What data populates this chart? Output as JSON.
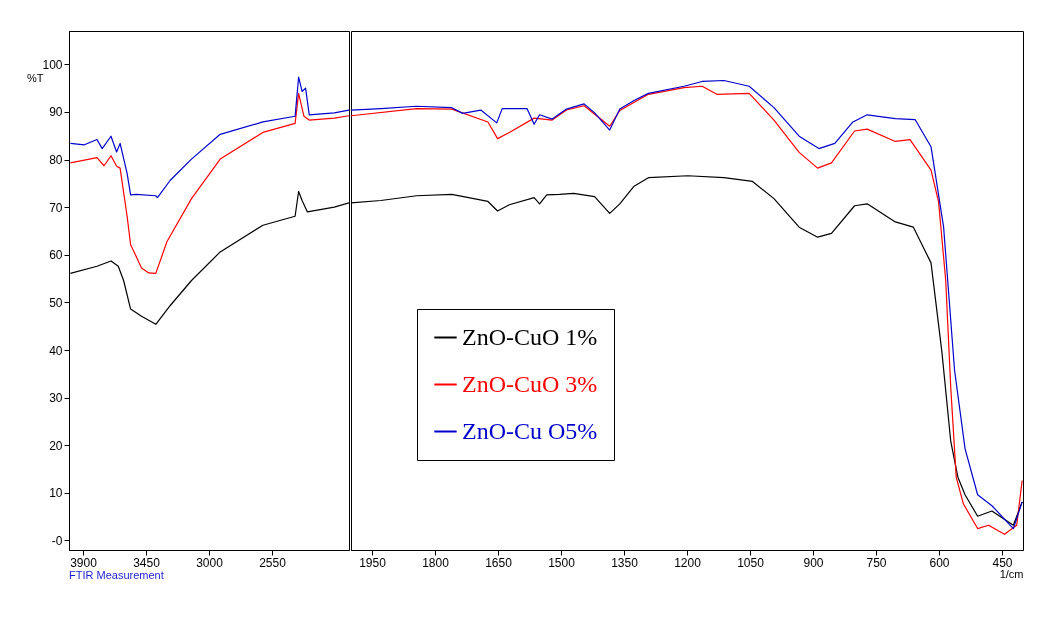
{
  "chart_data": [
    {
      "type": "line",
      "ylabel": "%T",
      "annotations": [
        "FTIR Measurement"
      ],
      "xlim": [
        4000,
        2000
      ],
      "xticks": [
        3900,
        3450,
        3000,
        2550
      ],
      "ylim": [
        -2,
        107
      ],
      "yticks": [
        {
          "value": 0,
          "label": "-0"
        },
        10,
        20,
        30,
        40,
        50,
        60,
        70,
        80,
        90,
        100
      ],
      "grid": false,
      "line_style": "solid",
      "series": [
        {
          "color": "#000000",
          "x": [
            3990,
            3800,
            3700,
            3648,
            3610,
            3560,
            3482,
            3380,
            3278,
            3125,
            2920,
            2615,
            2385,
            2360,
            2335,
            2297,
            2105,
            2000
          ],
          "values": [
            56.1,
            57.6,
            58.7,
            57.6,
            54.6,
            48.6,
            47.1,
            45.4,
            49.3,
            54.6,
            60.6,
            66.2,
            68.1,
            73.3,
            71.4,
            69.0,
            70.0,
            70.9
          ]
        },
        {
          "color": "#ff0000",
          "x": [
            3990,
            3800,
            3750,
            3700,
            3660,
            3635,
            3585,
            3560,
            3535,
            3482,
            3430,
            3380,
            3300,
            3125,
            2920,
            2615,
            2385,
            2360,
            2322,
            2284,
            2105,
            2000
          ],
          "values": [
            79.3,
            80.4,
            78.7,
            80.8,
            78.6,
            78.2,
            68.1,
            62.1,
            60.6,
            57.2,
            56.2,
            56.1,
            62.8,
            71.8,
            80.1,
            85.7,
            87.6,
            93.9,
            89.1,
            88.3,
            88.7,
            89.2
          ]
        },
        {
          "color": "#0000cc",
          "x": [
            3990,
            3890,
            3800,
            3763,
            3700,
            3660,
            3635,
            3585,
            3560,
            3520,
            3380,
            3368,
            3278,
            3125,
            2920,
            2615,
            2385,
            2360,
            2335,
            2310,
            2284,
            2105,
            2000
          ],
          "values": [
            83.4,
            83.1,
            84.2,
            82.3,
            84.9,
            81.6,
            83.4,
            77.1,
            72.6,
            72.7,
            72.4,
            72.0,
            75.6,
            80.1,
            85.3,
            87.9,
            89.1,
            97.3,
            94.3,
            95.0,
            89.4,
            89.8,
            90.4
          ]
        }
      ]
    },
    {
      "type": "line",
      "xlabel": "1/cm",
      "xlim": [
        2000,
        400
      ],
      "xticks": [
        1950,
        1800,
        1650,
        1500,
        1350,
        1200,
        1050,
        900,
        750,
        600,
        450
      ],
      "ylim": [
        -2,
        107
      ],
      "tick_labels": "x",
      "grid": false,
      "legend": "bottom",
      "line_style": "solid",
      "series": [
        {
          "name": "ZnO-CuO 1%",
          "color": "#000000",
          "x": [
            2000,
            1929,
            1844,
            1760,
            1674,
            1651,
            1623,
            1564,
            1551,
            1534,
            1504,
            1470,
            1420,
            1384,
            1360,
            1326,
            1292,
            1198,
            1112,
            1044,
            993,
            933,
            889,
            856,
            801,
            771,
            704,
            661,
            619,
            593,
            572,
            555,
            538,
            508,
            474,
            423,
            402
          ],
          "values": [
            70.9,
            71.4,
            72.4,
            72.7,
            71.2,
            69.2,
            70.5,
            72.0,
            70.7,
            72.6,
            72.7,
            72.9,
            72.2,
            68.7,
            70.7,
            74.4,
            76.2,
            76.6,
            76.2,
            75.4,
            71.8,
            65.8,
            63.7,
            64.5,
            70.3,
            70.7,
            66.9,
            65.8,
            58.3,
            39.5,
            20.8,
            13.3,
            9.6,
            5.1,
            6.2,
            3.2,
            8.1
          ]
        },
        {
          "name": "ZnO-CuO 3%",
          "color": "#ff0000",
          "x": [
            2000,
            1844,
            1760,
            1674,
            1651,
            1623,
            1564,
            1521,
            1487,
            1445,
            1384,
            1360,
            1292,
            1207,
            1164,
            1129,
            1052,
            993,
            933,
            889,
            856,
            801,
            771,
            704,
            669,
            619,
            601,
            584,
            572,
            559,
            542,
            508,
            482,
            444,
            415,
            402
          ],
          "values": [
            89.2,
            90.7,
            90.6,
            87.9,
            84.4,
            85.7,
            88.7,
            88.3,
            90.4,
            91.3,
            87.0,
            90.3,
            93.7,
            95.1,
            95.4,
            93.7,
            93.9,
            88.3,
            81.5,
            78.2,
            79.3,
            86.0,
            86.4,
            83.8,
            84.2,
            77.8,
            71.1,
            54.6,
            32.1,
            13.3,
            7.7,
            2.5,
            3.2,
            1.3,
            3.2,
            12.6
          ]
        },
        {
          "name": "ZnO-Cu O5%",
          "color": "#0000cc",
          "x": [
            2000,
            1929,
            1844,
            1760,
            1734,
            1691,
            1653,
            1640,
            1581,
            1564,
            1551,
            1521,
            1487,
            1445,
            1420,
            1384,
            1360,
            1326,
            1292,
            1207,
            1164,
            1112,
            1052,
            993,
            933,
            886,
            848,
            805,
            771,
            704,
            657,
            619,
            589,
            563,
            538,
            508,
            474,
            423,
            402
          ],
          "values": [
            90.4,
            90.7,
            91.2,
            90.9,
            89.7,
            90.4,
            87.7,
            90.7,
            90.7,
            87.4,
            89.4,
            88.5,
            90.6,
            91.7,
            89.8,
            86.2,
            90.6,
            92.4,
            93.9,
            95.4,
            96.4,
            96.6,
            95.4,
            90.9,
            84.9,
            82.3,
            83.4,
            87.9,
            89.4,
            88.6,
            88.4,
            82.7,
            65.8,
            35.8,
            19.3,
            9.6,
            7.3,
            2.5,
            8.1
          ]
        }
      ]
    }
  ]
}
